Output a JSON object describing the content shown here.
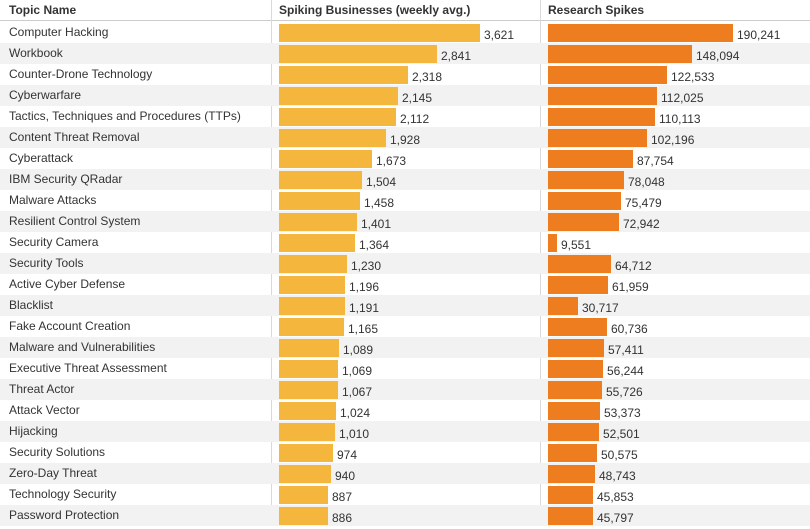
{
  "columns": {
    "topic": "Topic Name",
    "biz": "Spiking Businesses (weekly avg.)",
    "res": "Research Spikes"
  },
  "colors": {
    "biz_bar": "#f5b63e",
    "res_bar": "#ee7d1f",
    "alt_row": "#f2f2f2"
  },
  "chart_data": {
    "type": "bar",
    "title": "",
    "series": [
      {
        "name": "Spiking Businesses (weekly avg.)",
        "max": 3621,
        "values": [
          3621,
          2841,
          2318,
          2145,
          2112,
          1928,
          1673,
          1504,
          1458,
          1401,
          1364,
          1230,
          1196,
          1191,
          1165,
          1089,
          1069,
          1067,
          1024,
          1010,
          974,
          940,
          887,
          886
        ]
      },
      {
        "name": "Research Spikes",
        "max": 190241,
        "values": [
          190241,
          148094,
          122533,
          112025,
          110113,
          102196,
          87754,
          78048,
          75479,
          72942,
          9551,
          64712,
          61959,
          30717,
          60736,
          57411,
          56244,
          55726,
          53373,
          52501,
          50575,
          48743,
          45853,
          45797
        ]
      }
    ],
    "categories": [
      "Computer Hacking",
      "Workbook",
      "Counter-Drone Technology",
      "Cyberwarfare",
      "Tactics, Techniques and Procedures (TTPs)",
      "Content Threat Removal",
      "Cyberattack",
      "IBM Security QRadar",
      "Malware Attacks",
      "Resilient Control System",
      "Security Camera",
      "Security Tools",
      "Active Cyber Defense",
      "Blacklist",
      "Fake Account Creation",
      "Malware and Vulnerabilities",
      "Executive Threat Assessment",
      "Threat Actor",
      "Attack Vector",
      "Hijacking",
      "Security Solutions",
      "Zero-Day Threat",
      "Technology Security",
      "Password Protection"
    ]
  },
  "rows": [
    {
      "topic": "Computer Hacking",
      "biz_label": "3,621",
      "res_label": "190,241"
    },
    {
      "topic": "Workbook",
      "biz_label": "2,841",
      "res_label": "148,094"
    },
    {
      "topic": "Counter-Drone Technology",
      "biz_label": "2,318",
      "res_label": "122,533"
    },
    {
      "topic": "Cyberwarfare",
      "biz_label": "2,145",
      "res_label": "112,025"
    },
    {
      "topic": "Tactics, Techniques and Procedures (TTPs)",
      "biz_label": "2,112",
      "res_label": "110,113"
    },
    {
      "topic": "Content Threat Removal",
      "biz_label": "1,928",
      "res_label": "102,196"
    },
    {
      "topic": "Cyberattack",
      "biz_label": "1,673",
      "res_label": "87,754"
    },
    {
      "topic": "IBM Security QRadar",
      "biz_label": "1,504",
      "res_label": "78,048"
    },
    {
      "topic": "Malware Attacks",
      "biz_label": "1,458",
      "res_label": "75,479"
    },
    {
      "topic": "Resilient Control System",
      "biz_label": "1,401",
      "res_label": "72,942"
    },
    {
      "topic": "Security Camera",
      "biz_label": "1,364",
      "res_label": "9,551"
    },
    {
      "topic": "Security Tools",
      "biz_label": "1,230",
      "res_label": "64,712"
    },
    {
      "topic": "Active Cyber Defense",
      "biz_label": "1,196",
      "res_label": "61,959"
    },
    {
      "topic": "Blacklist",
      "biz_label": "1,191",
      "res_label": "30,717"
    },
    {
      "topic": "Fake Account Creation",
      "biz_label": "1,165",
      "res_label": "60,736"
    },
    {
      "topic": "Malware and Vulnerabilities",
      "biz_label": "1,089",
      "res_label": "57,411"
    },
    {
      "topic": "Executive Threat Assessment",
      "biz_label": "1,069",
      "res_label": "56,244"
    },
    {
      "topic": "Threat Actor",
      "biz_label": "1,067",
      "res_label": "55,726"
    },
    {
      "topic": "Attack Vector",
      "biz_label": "1,024",
      "res_label": "53,373"
    },
    {
      "topic": "Hijacking",
      "biz_label": "1,010",
      "res_label": "52,501"
    },
    {
      "topic": "Security Solutions",
      "biz_label": "974",
      "res_label": "50,575"
    },
    {
      "topic": "Zero-Day Threat",
      "biz_label": "940",
      "res_label": "48,743"
    },
    {
      "topic": "Technology Security",
      "biz_label": "887",
      "res_label": "45,853"
    },
    {
      "topic": "Password Protection",
      "biz_label": "886",
      "res_label": "45,797"
    }
  ]
}
